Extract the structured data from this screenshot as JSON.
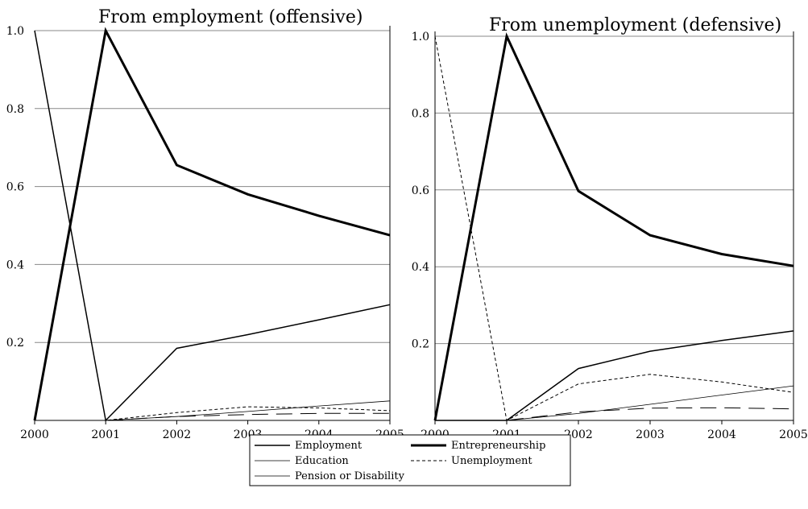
{
  "chart_data": [
    {
      "type": "line",
      "title": "From employment (offensive)",
      "x": [
        2000,
        2001,
        2002,
        2003,
        2004,
        2005
      ],
      "ylim": [
        0,
        1.0
      ],
      "yticks": [
        "1.0",
        "0.8",
        "0.6",
        "0.4",
        "0.2"
      ],
      "xticks": [
        "2000",
        "2001",
        "2002",
        "2003",
        "2004",
        "2005"
      ],
      "grid": true,
      "series": [
        {
          "name": "Employment",
          "values": [
            1.0,
            0.0,
            0.185,
            0.22,
            0.258,
            0.297
          ]
        },
        {
          "name": "Entrepreneurship",
          "values": [
            0.0,
            1.0,
            0.655,
            0.58,
            0.525,
            0.475
          ]
        },
        {
          "name": "Education",
          "values": [
            0.0,
            0.0,
            0.01,
            0.023,
            0.037,
            0.05
          ]
        },
        {
          "name": "Unemployment",
          "values": [
            0.0,
            0.0,
            0.02,
            0.035,
            0.032,
            0.025
          ]
        },
        {
          "name": "Pension or Disability",
          "values": [
            0.0,
            0.0,
            0.01,
            0.015,
            0.018,
            0.018
          ]
        }
      ]
    },
    {
      "type": "line",
      "title": "From unemployment (defensive)",
      "x": [
        2000,
        2001,
        2002,
        2003,
        2004,
        2005
      ],
      "ylim": [
        0,
        1.0
      ],
      "yticks": [
        "1.0",
        "0.8",
        "0.6",
        "0.4",
        "0.2"
      ],
      "xticks": [
        "2000",
        "2001",
        "2002",
        "2003",
        "2004",
        "2005"
      ],
      "grid": true,
      "series": [
        {
          "name": "Employment",
          "values": [
            0.0,
            0.0,
            0.135,
            0.18,
            0.208,
            0.233
          ]
        },
        {
          "name": "Entrepreneurship",
          "values": [
            0.0,
            1.0,
            0.597,
            0.482,
            0.433,
            0.402
          ]
        },
        {
          "name": "Education",
          "values": [
            0.0,
            0.0,
            0.018,
            0.042,
            0.066,
            0.09
          ]
        },
        {
          "name": "Unemployment",
          "values": [
            1.0,
            0.0,
            0.095,
            0.12,
            0.1,
            0.073
          ]
        },
        {
          "name": "Pension or Disability",
          "values": [
            0.0,
            0.0,
            0.022,
            0.032,
            0.033,
            0.03
          ]
        }
      ]
    }
  ],
  "legend": {
    "placement": "bottom-center",
    "entries": [
      "Employment",
      "Entrepreneurship",
      "Education",
      "Unemployment",
      "Pension or Disability"
    ]
  }
}
